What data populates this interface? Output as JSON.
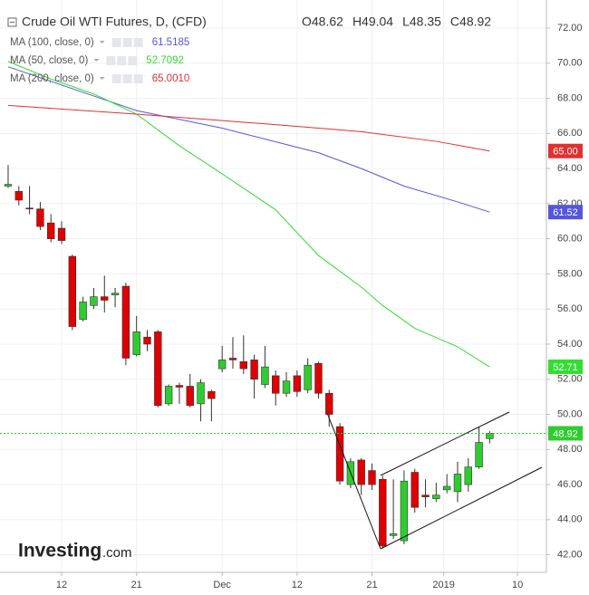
{
  "header": {
    "title": "Crude Oil WTI Futures, D, (CFD)",
    "ohlc": [
      {
        "value": 48.62,
        "label": "O48.62"
      },
      {
        "value": 49.04,
        "label": "H49.04"
      },
      {
        "value": 48.35,
        "label": "L48.35"
      },
      {
        "value": 48.92,
        "label": "C48.92"
      }
    ],
    "logo": "Investing",
    "logo_suffix": ".com"
  },
  "chart_data": {
    "type": "candlestick",
    "up_color": "#2fcc2f",
    "down_color": "#e00000",
    "x": [
      0,
      1,
      2,
      3,
      4,
      5,
      6,
      7,
      8,
      9,
      10,
      11,
      12,
      13,
      14,
      15,
      16,
      17,
      18,
      19,
      20,
      21,
      22,
      23,
      24,
      25,
      26,
      27,
      28,
      29,
      30,
      31,
      32,
      33,
      34,
      35,
      36,
      37,
      38,
      39,
      40,
      41,
      42,
      43,
      44,
      45
    ],
    "open": [
      63.0,
      62.7,
      61.75,
      61.7,
      60.9,
      60.6,
      59.0,
      55.4,
      56.2,
      56.7,
      56.8,
      57.3,
      53.4,
      54.4,
      54.7,
      50.6,
      51.65,
      51.6,
      50.6,
      51.3,
      52.6,
      53.2,
      53.0,
      53.1,
      51.7,
      52.2,
      51.2,
      52.2,
      51.4,
      52.9,
      51.2,
      49.3,
      46.0,
      47.4,
      46.8,
      46.3,
      43.1,
      42.8,
      46.7,
      45.4,
      45.2,
      45.7,
      45.6,
      46.0,
      47.0,
      48.62
    ],
    "high": [
      64.2,
      63.0,
      63.0,
      62.1,
      61.4,
      61.0,
      59.1,
      56.7,
      57.2,
      57.9,
      57.2,
      57.5,
      55.6,
      54.8,
      54.8,
      51.7,
      51.8,
      52.3,
      52.0,
      51.4,
      53.9,
      54.4,
      54.5,
      53.4,
      53.9,
      52.5,
      52.4,
      52.5,
      53.2,
      53.0,
      51.4,
      49.5,
      47.5,
      47.5,
      47.2,
      46.5,
      46.3,
      46.8,
      46.9,
      46.3,
      46.1,
      46.6,
      47.3,
      47.5,
      49.3,
      49.04
    ],
    "low": [
      62.9,
      61.9,
      61.4,
      60.5,
      59.8,
      59.7,
      54.8,
      55.3,
      56.0,
      55.8,
      56.1,
      52.8,
      53.3,
      53.6,
      50.4,
      50.5,
      50.6,
      50.4,
      49.6,
      49.6,
      52.4,
      52.6,
      52.3,
      50.9,
      51.5,
      50.5,
      51.0,
      51.0,
      51.2,
      50.9,
      49.3,
      46.0,
      45.8,
      45.4,
      45.7,
      42.4,
      42.9,
      42.6,
      44.4,
      44.7,
      45.0,
      45.5,
      45.0,
      45.6,
      46.9,
      48.35
    ],
    "close": [
      63.1,
      62.2,
      61.7,
      60.7,
      60.0,
      59.9,
      55.0,
      56.4,
      56.7,
      56.5,
      56.9,
      53.2,
      54.7,
      54.0,
      50.5,
      51.6,
      51.55,
      50.5,
      51.8,
      50.9,
      53.1,
      53.1,
      52.6,
      52.0,
      52.7,
      51.2,
      51.9,
      51.3,
      52.8,
      51.2,
      50.0,
      46.2,
      47.3,
      46.0,
      46.0,
      42.5,
      43.2,
      46.2,
      44.7,
      45.3,
      45.4,
      45.9,
      46.6,
      47.0,
      48.4,
      48.92
    ],
    "last": {
      "value": 48.92,
      "label": "48.92"
    },
    "series": [
      {
        "name": "MA (100, close, 0)",
        "legend_value": 61.5185,
        "color": "#5555dd",
        "x": [
          0,
          12,
          20,
          29,
          33,
          37,
          42,
          45
        ],
        "values": [
          69.8,
          67.3,
          66.3,
          64.9,
          64.0,
          63.0,
          62.1,
          61.52
        ],
        "badge": {
          "value": 61.52,
          "label": "61.52"
        }
      },
      {
        "name": "MA (50, close, 0)",
        "legend_value": 52.7092,
        "color": "#33dd33",
        "x": [
          0,
          4,
          8,
          12,
          16,
          20,
          25,
          29,
          33,
          35,
          38,
          42,
          45
        ],
        "values": [
          70.1,
          69.1,
          68.25,
          67.1,
          65.3,
          63.7,
          61.65,
          59.05,
          57.25,
          56.2,
          54.9,
          53.85,
          52.7
        ],
        "badge": {
          "value": 52.71,
          "label": "52.71"
        }
      },
      {
        "name": "MA (200, close, 0)",
        "legend_value": 65.001,
        "legend_label": "65.0010",
        "color": "#e03030",
        "x": [
          0,
          12,
          25,
          33,
          40,
          45
        ],
        "values": [
          67.6,
          67.1,
          66.5,
          66.1,
          65.55,
          65.0
        ],
        "badge": {
          "value": 65.0,
          "label": "65.00"
        }
      }
    ],
    "xlim": [
      -0.76,
      50.3
    ],
    "xticks": [
      {
        "value": 5,
        "label": "12"
      },
      {
        "value": 12,
        "label": "21"
      },
      {
        "value": 20,
        "label": "Dec"
      },
      {
        "value": 27,
        "label": "12"
      },
      {
        "value": 34,
        "label": "21"
      },
      {
        "value": 40.7,
        "label": "2019"
      },
      {
        "value": 47.6,
        "label": "10"
      }
    ],
    "ylim": [
      41.0,
      73.6
    ],
    "yticks": [
      {
        "value": 42,
        "label": "42.00"
      },
      {
        "value": 44,
        "label": "44.00"
      },
      {
        "value": 46,
        "label": "46.00"
      },
      {
        "value": 48,
        "label": "48.00"
      },
      {
        "value": 50,
        "label": "50.00"
      },
      {
        "value": 52,
        "label": "52.00"
      },
      {
        "value": 54,
        "label": "54.00"
      },
      {
        "value": 56,
        "label": "56.00"
      },
      {
        "value": 58,
        "label": "58.00"
      },
      {
        "value": 60,
        "label": "60.00"
      },
      {
        "value": 62,
        "label": "62.00"
      },
      {
        "value": 64,
        "label": "64.00"
      },
      {
        "value": 66,
        "label": "66.00"
      },
      {
        "value": 68,
        "label": "68.00"
      },
      {
        "value": 70,
        "label": "70.00"
      },
      {
        "value": 72,
        "label": "72.00"
      }
    ],
    "grid": true
  }
}
